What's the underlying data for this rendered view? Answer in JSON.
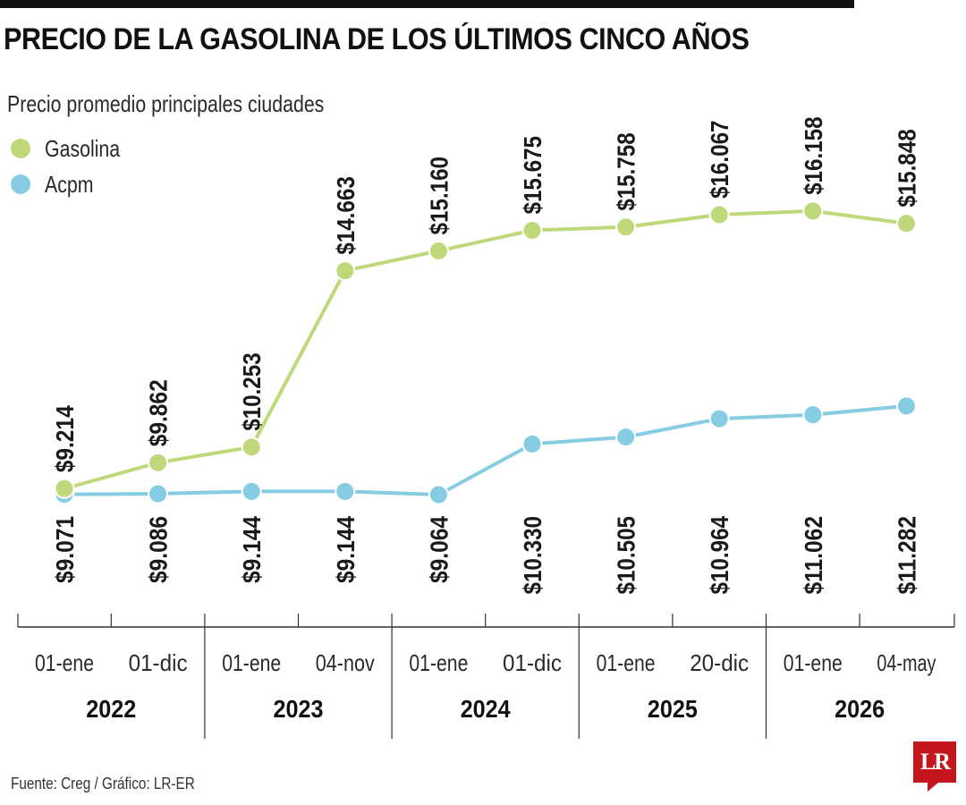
{
  "title": "PRECIO DE LA GASOLINA DE LOS ÚLTIMOS CINCO AÑOS",
  "subtitle": "Precio promedio principales ciudades",
  "footer": "Fuente: Creg / Gráfico: LR-ER",
  "logo": "LR",
  "colors": {
    "gasolina": "#bfd97a",
    "acpm": "#86cce3",
    "logo": "#c4161c",
    "axis": "#333333"
  },
  "chart_data": {
    "type": "line",
    "title": "PRECIO DE LA GASOLINA DE LOS ÚLTIMOS CINCO AÑOS",
    "subtitle": "Precio promedio principales ciudades",
    "legend_position": "top-left",
    "grid": false,
    "ylim": [
      9000,
      16500
    ],
    "categories": [
      "01-ene",
      "01-dic",
      "01-ene",
      "04-nov",
      "01-ene",
      "01-dic",
      "01-ene",
      "20-dic",
      "01-ene",
      "04-may"
    ],
    "years": [
      "2022",
      "2023",
      "2024",
      "2025",
      "2026"
    ],
    "series": [
      {
        "name": "Gasolina",
        "color": "#bfd97a",
        "label_position": "above",
        "values": [
          9214,
          9862,
          10253,
          14663,
          15160,
          15675,
          15758,
          16067,
          16158,
          15848
        ],
        "labels": [
          "$9.214",
          "$9.862",
          "$10.253",
          "$14.663",
          "$15.160",
          "$15.675",
          "$15.758",
          "$16.067",
          "$16.158",
          "$15.848"
        ]
      },
      {
        "name": "Acpm",
        "color": "#86cce3",
        "label_position": "below",
        "values": [
          9071,
          9086,
          9144,
          9144,
          9064,
          10330,
          10505,
          10964,
          11062,
          11282
        ],
        "labels": [
          "$9.071",
          "$9.086",
          "$9.144",
          "$9.144",
          "$9.064",
          "$10.330",
          "$10.505",
          "$10.964",
          "$11.062",
          "$11.282"
        ]
      }
    ]
  }
}
